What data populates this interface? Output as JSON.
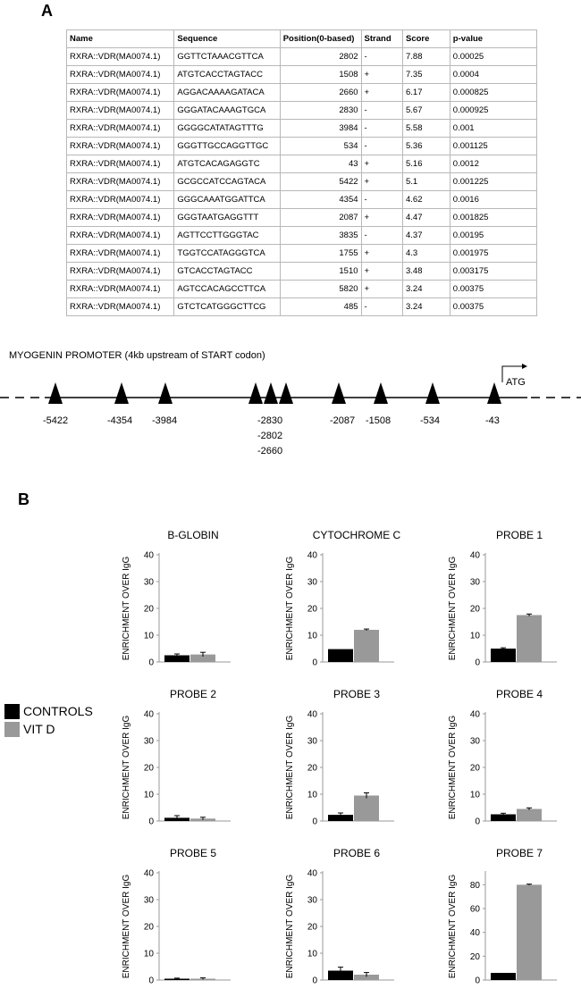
{
  "panel_a_label": "A",
  "panel_b_label": "B",
  "table": {
    "headers": [
      "Name",
      "Sequence",
      "Position(0-based)",
      "Strand",
      "Score",
      "p-value"
    ],
    "rows": [
      [
        "RXRA::VDR(MA0074.1)",
        "GGTTCTAAACGTTCA",
        "2802",
        "-",
        "7.88",
        "0.00025"
      ],
      [
        "RXRA::VDR(MA0074.1)",
        "ATGTCACCTAGTACC",
        "1508",
        "+",
        "7.35",
        "0.0004"
      ],
      [
        "RXRA::VDR(MA0074.1)",
        "AGGACAAAAGATACA",
        "2660",
        "+",
        "6.17",
        "0.000825"
      ],
      [
        "RXRA::VDR(MA0074.1)",
        "GGGATACAAAGTGCA",
        "2830",
        "-",
        "5.67",
        "0.000925"
      ],
      [
        "RXRA::VDR(MA0074.1)",
        "GGGGCATATAGTTTG",
        "3984",
        "-",
        "5.58",
        "0.001"
      ],
      [
        "RXRA::VDR(MA0074.1)",
        "GGGTTGCCAGGTTGC",
        "534",
        "-",
        "5.36",
        "0.001125"
      ],
      [
        "RXRA::VDR(MA0074.1)",
        "ATGTCACAGAGGTC",
        "43",
        "+",
        "5.16",
        "0.0012"
      ],
      [
        "RXRA::VDR(MA0074.1)",
        "GCGCCATCCAGTACA",
        "5422",
        "+",
        "5.1",
        "0.001225"
      ],
      [
        "RXRA::VDR(MA0074.1)",
        "GGGCAAATGGATTCA",
        "4354",
        "-",
        "4.62",
        "0.0016"
      ],
      [
        "RXRA::VDR(MA0074.1)",
        "GGGTAATGAGGTTT",
        "2087",
        "+",
        "4.47",
        "0.001825"
      ],
      [
        "RXRA::VDR(MA0074.1)",
        "AGTTCCTTGGGTAC",
        "3835",
        "-",
        "4.37",
        "0.00195"
      ],
      [
        "RXRA::VDR(MA0074.1)",
        "TGGTCCATAGGGTCA",
        "1755",
        "+",
        "4.3",
        "0.001975"
      ],
      [
        "RXRA::VDR(MA0074.1)",
        "GTCACCTAGTACC",
        "1510",
        "+",
        "3.48",
        "0.003175"
      ],
      [
        "RXRA::VDR(MA0074.1)",
        "AGTCCACAGCCTTCA",
        "5820",
        "+",
        "3.24",
        "0.00375"
      ],
      [
        "RXRA::VDR(MA0074.1)",
        "GTCTCATGGGCTTCG",
        "485",
        "-",
        "3.24",
        "0.00375"
      ]
    ]
  },
  "promoter": {
    "title": "MYOGENIN PROMOTER (4kb upstream of START codon)",
    "atg_label": "ATG",
    "site_labels": [
      "-5422",
      "-4354",
      "-3984",
      "-2830",
      "-2802",
      "-2660",
      "-2087",
      "-1508",
      "-534",
      "-43"
    ]
  },
  "legend": [
    {
      "label": "CONTROLS",
      "color": "#000000"
    },
    {
      "label": "VIT D",
      "color": "#999999"
    }
  ],
  "chart_data": [
    {
      "type": "bar",
      "title": "B-GLOBIN",
      "ylabel": "ENRICHMENT  OVER  IgG",
      "ylim": [
        0,
        40
      ],
      "yticks": [
        0,
        10,
        20,
        30,
        40
      ],
      "series": [
        {
          "name": "CONTROLS",
          "values": [
            2.5
          ]
        },
        {
          "name": "VIT D",
          "values": [
            2.8
          ]
        }
      ],
      "errors": [
        0.5,
        0.8
      ]
    },
    {
      "type": "bar",
      "title": "CYTOCHROME C",
      "ylabel": "ENRICHMENT  OVER  IgG",
      "ylim": [
        0,
        40
      ],
      "yticks": [
        0,
        10,
        20,
        30,
        40
      ],
      "series": [
        {
          "name": "CONTROLS",
          "values": [
            4.8
          ]
        },
        {
          "name": "VIT D",
          "values": [
            12.0
          ]
        }
      ],
      "errors": [
        0.0,
        0.3
      ]
    },
    {
      "type": "bar",
      "title": "PROBE 1",
      "ylabel": "ENRICHMENT  OVER  IgG",
      "ylim": [
        0,
        40
      ],
      "yticks": [
        0,
        10,
        20,
        30,
        40
      ],
      "series": [
        {
          "name": "CONTROLS",
          "values": [
            5.0
          ]
        },
        {
          "name": "VIT D",
          "values": [
            17.5
          ]
        }
      ],
      "errors": [
        0.3,
        0.4
      ]
    },
    {
      "type": "bar",
      "title": "PROBE 2",
      "ylabel": "ENRICHMENT  OVER  IgG",
      "ylim": [
        0,
        40
      ],
      "yticks": [
        0,
        10,
        20,
        30,
        40
      ],
      "series": [
        {
          "name": "CONTROLS",
          "values": [
            1.2
          ]
        },
        {
          "name": "VIT D",
          "values": [
            0.9
          ]
        }
      ],
      "errors": [
        0.8,
        0.5
      ]
    },
    {
      "type": "bar",
      "title": "PROBE 3",
      "ylabel": "ENRICHMENT  OVER  IgG",
      "ylim": [
        0,
        40
      ],
      "yticks": [
        0,
        10,
        20,
        30,
        40
      ],
      "series": [
        {
          "name": "CONTROLS",
          "values": [
            2.3
          ]
        },
        {
          "name": "VIT D",
          "values": [
            9.5
          ]
        }
      ],
      "errors": [
        0.7,
        1.0
      ]
    },
    {
      "type": "bar",
      "title": "PROBE 4",
      "ylabel": "ENRICHMENT  OVER  IgG",
      "ylim": [
        0,
        40
      ],
      "yticks": [
        0,
        10,
        20,
        30,
        40
      ],
      "series": [
        {
          "name": "CONTROLS",
          "values": [
            2.5
          ]
        },
        {
          "name": "VIT D",
          "values": [
            4.5
          ]
        }
      ],
      "errors": [
        0.4,
        0.4
      ]
    },
    {
      "type": "bar",
      "title": "PROBE 5",
      "ylabel": "ENRICHMENT  OVER  IgG",
      "ylim": [
        0,
        40
      ],
      "yticks": [
        0,
        10,
        20,
        30,
        40
      ],
      "series": [
        {
          "name": "CONTROLS",
          "values": [
            0.5
          ]
        },
        {
          "name": "VIT D",
          "values": [
            0.5
          ]
        }
      ],
      "errors": [
        0.2,
        0.3
      ]
    },
    {
      "type": "bar",
      "title": "PROBE 6",
      "ylabel": "ENRICHMENT  OVER  IgG",
      "ylim": [
        0,
        40
      ],
      "yticks": [
        0,
        10,
        20,
        30,
        40
      ],
      "series": [
        {
          "name": "CONTROLS",
          "values": [
            3.5
          ]
        },
        {
          "name": "VIT D",
          "values": [
            2.0
          ]
        }
      ],
      "errors": [
        1.3,
        0.8
      ]
    },
    {
      "type": "bar",
      "title": "PROBE 7",
      "ylabel": "ENRICHMENT  OVER  IgG",
      "ylim": [
        0,
        90
      ],
      "yticks": [
        0,
        20,
        40,
        60,
        80
      ],
      "series": [
        {
          "name": "CONTROLS",
          "values": [
            6.0
          ]
        },
        {
          "name": "VIT D",
          "values": [
            80.0
          ]
        }
      ],
      "errors": [
        0.0,
        0.5
      ]
    }
  ]
}
